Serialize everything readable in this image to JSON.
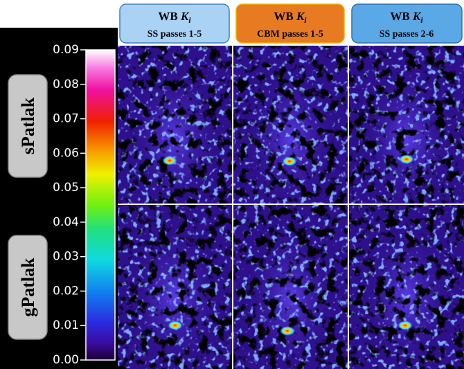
{
  "columns": [
    {
      "title": {
        "text": "WB",
        "symbol": "K",
        "subscript": "i"
      },
      "subtitle": "SS passes 1-5"
    },
    {
      "title": {
        "text": "WB",
        "symbol": "K",
        "subscript": "i"
      },
      "subtitle": "CBM passes 1-5"
    },
    {
      "title": {
        "text": "WB",
        "symbol": "K",
        "subscript": "i"
      },
      "subtitle": "SS passes 2-6"
    }
  ],
  "rows": [
    {
      "label": "sPatlak"
    },
    {
      "label": "gPatlak"
    }
  ],
  "colorbar": {
    "ticks": [
      {
        "value": 0,
        "label": "0.00"
      },
      {
        "value": 0.01,
        "label": "0.01"
      },
      {
        "value": 0.02,
        "label": "0.02"
      },
      {
        "value": 0.03,
        "label": "0.03"
      },
      {
        "value": 0.04,
        "label": "0.04"
      },
      {
        "value": 0.05,
        "label": "0.05"
      },
      {
        "value": 0.06,
        "label": "0.06"
      },
      {
        "value": 0.07,
        "label": "0.07"
      },
      {
        "value": 0.08,
        "label": "0.08"
      },
      {
        "value": 0.09,
        "label": "0.09"
      }
    ]
  }
}
